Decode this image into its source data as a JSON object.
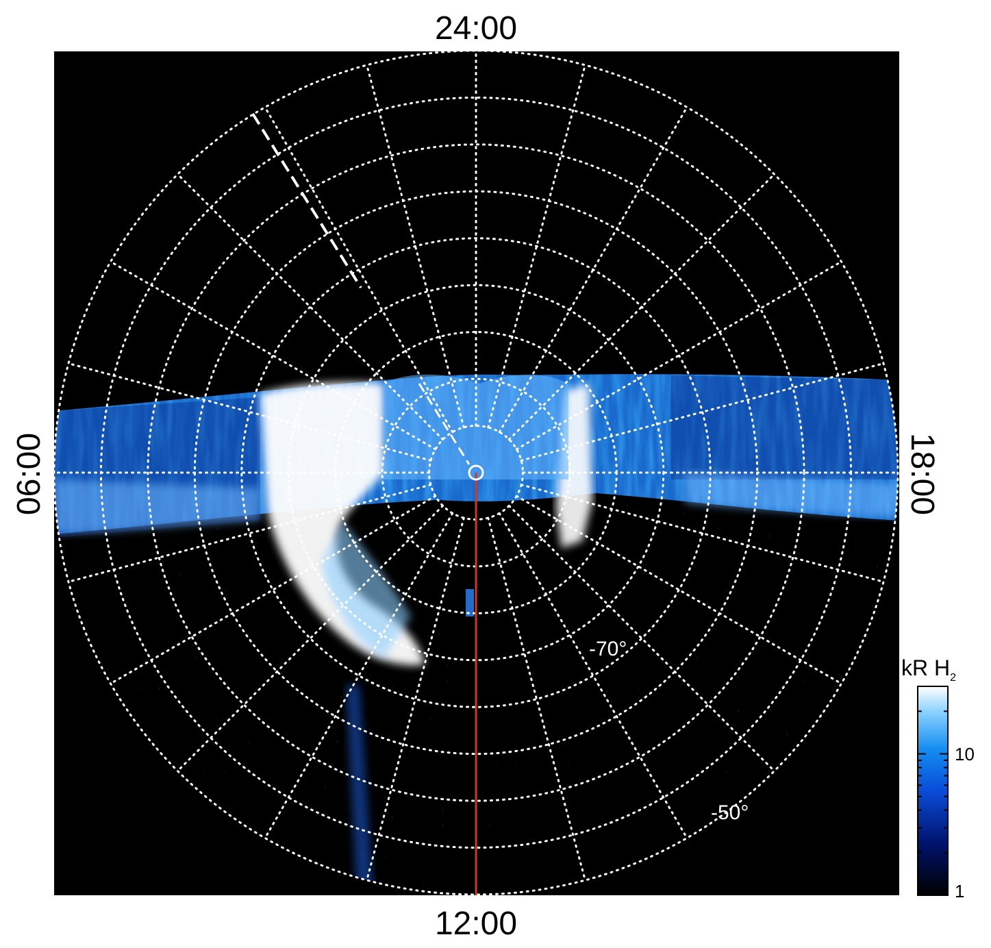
{
  "chart_data": {
    "type": "heatmap",
    "projection": "polar",
    "hemisphere": "southern",
    "title": "",
    "local_time_labels": {
      "top": "24:00",
      "bottom": "12:00",
      "left": "06:00",
      "right": "18:00"
    },
    "latitude_labels": [
      "-70°",
      "-50°"
    ],
    "latitude_circles_deg": [
      -85,
      -80,
      -75,
      -70,
      -65,
      -60,
      -55,
      -50,
      -45
    ],
    "local_time_meridians_hours": [
      0,
      1,
      2,
      3,
      4,
      5,
      6,
      7,
      8,
      9,
      10,
      11,
      12,
      13,
      14,
      15,
      16,
      17,
      18,
      19,
      20,
      21,
      22,
      23
    ],
    "grid": true,
    "grid_style": "dotted white",
    "dashed_line_local_time": "02:00",
    "red_line_local_time": "12:00",
    "colorbar": {
      "title": "kR H",
      "title_subscript": "2",
      "scale": "log",
      "range": [
        1,
        30
      ],
      "tick_labels": [
        "10",
        "1"
      ],
      "tick_values": [
        10,
        1
      ],
      "placement": "right"
    },
    "colors": {
      "background": "#000000",
      "grid": "#ffffff",
      "red_line": "#d03a1a",
      "colormap": [
        "#000000",
        "#00136e",
        "#0a4cd8",
        "#148ef0",
        "#8cd2ff",
        "#ffffff"
      ]
    }
  }
}
